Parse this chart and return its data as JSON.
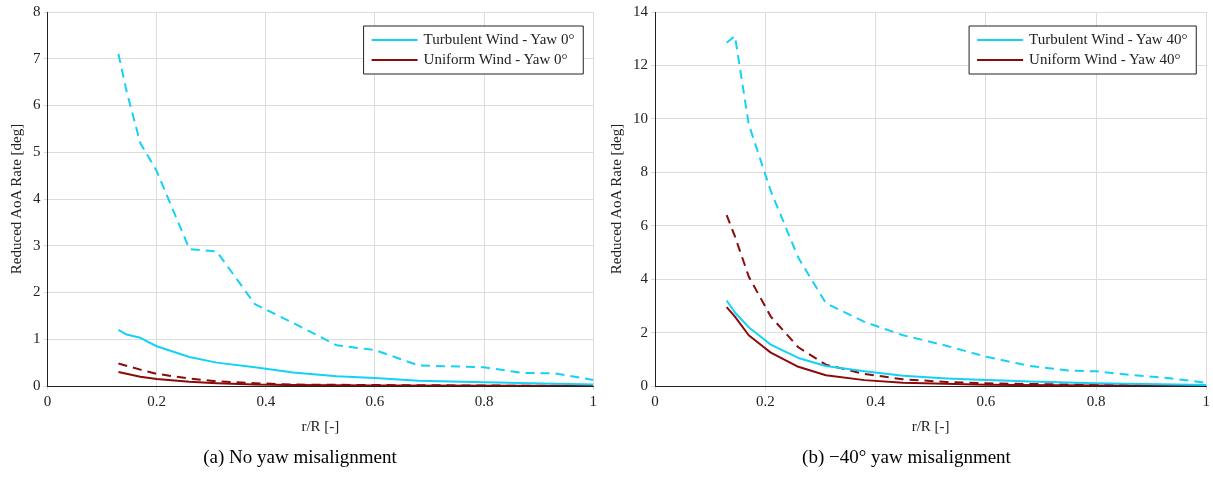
{
  "chart_data": [
    {
      "type": "line",
      "xlabel": "r/R [-]",
      "ylabel": "Reduced AoA Rate [deg]",
      "annotations": [
        "(a) No yaw misalignment"
      ],
      "xlim": [
        0,
        1
      ],
      "xticks": [
        0,
        0.2,
        0.4,
        0.6,
        0.8,
        1
      ],
      "ylim": [
        0,
        8
      ],
      "yticks": [
        0,
        1,
        2,
        3,
        4,
        5,
        6,
        7,
        8
      ],
      "grid": true,
      "legend": "top right",
      "marker": "none",
      "series": [
        {
          "name": "Turbulent Wind - Yaw 0°",
          "color": "#14d2f5",
          "line_style": "solid",
          "x": [
            0.13,
            0.145,
            0.17,
            0.2,
            0.26,
            0.31,
            0.38,
            0.45,
            0.53,
            0.6,
            0.68,
            0.8,
            0.93,
            1.0
          ],
          "values": [
            1.2,
            1.1,
            1.03,
            0.85,
            0.62,
            0.5,
            0.4,
            0.29,
            0.21,
            0.17,
            0.11,
            0.08,
            0.05,
            0.03
          ]
        },
        {
          "name": "Uniform Wind - Yaw 0°",
          "color": "#8b0a0a",
          "line_style": "solid",
          "x": [
            0.13,
            0.17,
            0.2,
            0.26,
            0.31,
            0.38,
            0.45,
            0.6,
            1.0
          ],
          "values": [
            0.3,
            0.2,
            0.15,
            0.09,
            0.06,
            0.03,
            0.02,
            0.01,
            0
          ]
        },
        {
          "color": "#14d2f5",
          "line_style": "dashed",
          "x": [
            0.13,
            0.145,
            0.17,
            0.2,
            0.26,
            0.31,
            0.38,
            0.45,
            0.53,
            0.6,
            0.68,
            0.8,
            0.87,
            0.93,
            1.0
          ],
          "values": [
            7.1,
            6.3,
            5.2,
            4.6,
            2.93,
            2.88,
            1.75,
            1.35,
            0.87,
            0.77,
            0.44,
            0.4,
            0.28,
            0.27,
            0.13
          ]
        },
        {
          "color": "#8b0a0a",
          "line_style": "dashed",
          "x": [
            0.13,
            0.17,
            0.2,
            0.26,
            0.31,
            0.38,
            0.45,
            0.6,
            1.0
          ],
          "values": [
            0.48,
            0.35,
            0.26,
            0.16,
            0.1,
            0.06,
            0.03,
            0.02,
            0
          ]
        }
      ]
    },
    {
      "type": "line",
      "xlabel": "r/R [-]",
      "ylabel": "Reduced AoA Rate [deg]",
      "annotations": [
        "(b) −40° yaw misalignment"
      ],
      "xlim": [
        0,
        1
      ],
      "xticks": [
        0,
        0.2,
        0.4,
        0.6,
        0.8,
        1
      ],
      "ylim": [
        0,
        14
      ],
      "yticks": [
        0,
        2,
        4,
        6,
        8,
        10,
        12,
        14
      ],
      "grid": true,
      "legend": "top right",
      "marker": "none",
      "series": [
        {
          "name": "Turbulent Wind - Yaw 40°",
          "color": "#14d2f5",
          "line_style": "solid",
          "x": [
            0.13,
            0.145,
            0.17,
            0.21,
            0.26,
            0.31,
            0.38,
            0.45,
            0.53,
            0.6,
            0.68,
            0.8,
            1.0
          ],
          "values": [
            3.2,
            2.75,
            2.2,
            1.55,
            1.05,
            0.75,
            0.55,
            0.38,
            0.28,
            0.22,
            0.17,
            0.1,
            0.04
          ]
        },
        {
          "name": "Uniform Wind - Yaw 40°",
          "color": "#8b0a0a",
          "line_style": "solid",
          "x": [
            0.13,
            0.145,
            0.17,
            0.21,
            0.26,
            0.31,
            0.38,
            0.45,
            0.6,
            0.8,
            1.0
          ],
          "values": [
            2.95,
            2.6,
            1.9,
            1.25,
            0.72,
            0.4,
            0.22,
            0.12,
            0.05,
            0.02,
            0.01
          ]
        },
        {
          "color": "#14d2f5",
          "line_style": "dashed",
          "x": [
            0.13,
            0.145,
            0.17,
            0.21,
            0.26,
            0.31,
            0.38,
            0.45,
            0.53,
            0.6,
            0.68,
            0.75,
            0.8,
            0.87,
            0.93,
            1.0
          ],
          "values": [
            12.85,
            13.1,
            9.8,
            7.3,
            4.8,
            3.1,
            2.4,
            1.9,
            1.5,
            1.1,
            0.75,
            0.58,
            0.55,
            0.4,
            0.3,
            0.12
          ]
        },
        {
          "color": "#8b0a0a",
          "line_style": "dashed",
          "x": [
            0.13,
            0.145,
            0.17,
            0.21,
            0.26,
            0.31,
            0.38,
            0.45,
            0.53,
            0.6,
            0.8,
            1.0
          ],
          "values": [
            6.4,
            5.6,
            4.1,
            2.6,
            1.45,
            0.8,
            0.45,
            0.25,
            0.15,
            0.1,
            0.04,
            0.02
          ]
        }
      ]
    }
  ]
}
